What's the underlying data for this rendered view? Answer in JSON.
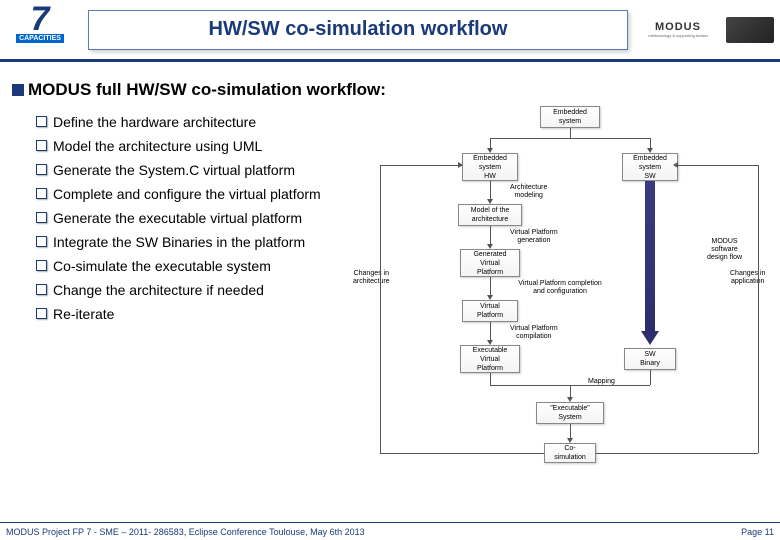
{
  "header": {
    "title": "HW/SW co-simulation workflow",
    "fp7_label": "CAPACITIES",
    "modus_label": "MODUS"
  },
  "section_title": "MODUS full HW/SW co-simulation workflow:",
  "steps": [
    "Define the hardware architecture",
    "Model the architecture using UML",
    "Generate the System.C virtual platform",
    "Complete and configure the virtual platform",
    "Generate the executable virtual platform",
    "Integrate the SW Binaries in the platform",
    "Co-simulate the executable system",
    "Change the architecture if needed",
    "Re-iterate"
  ],
  "side_annotations": {
    "changes_arch": "Changes in\narchitecture",
    "changes_app": "Changes in\napplication",
    "modus_flow": "MODUS\nsoftware\ndesign flow"
  },
  "diagram": {
    "nodes": {
      "embedded_system": "Embedded\nsystem",
      "embedded_hw": "Embedded\nsystem\nHW",
      "embedded_sw": "Embedded\nsystem\nSW",
      "model_arch": "Model of the\narchitecture",
      "generated_vp": "Generated\nVirtual\nPlatform",
      "virtual_platform": "Virtual\nPlatform",
      "exec_vp": "Executable\nVirtual\nPlatform",
      "sw_binary": "SW\nBinary",
      "exec_system": "\"Executable\"\nSystem",
      "cosim": "Co-\nsimulation"
    },
    "edge_labels": {
      "arch_modeling": "Architecture\nmodeling",
      "vp_gen": "Virtual Platform\ngeneration",
      "vp_complete": "Virtual Platform completion\nand configuration",
      "vp_compile": "Virtual Platform\ncompilation",
      "mapping": "Mapping"
    },
    "colors": {
      "accent": "#1a3a7a",
      "node_border": "#888888",
      "arrow": "#555555",
      "big_arrow_hw": "#1a3a7a",
      "big_arrow_sw": "#2e2e6e"
    }
  },
  "footer": {
    "left": "MODUS Project FP 7 - SME – 2011- 286583, Eclipse Conference Toulouse, May 6th 2013",
    "right": "Page 11"
  }
}
